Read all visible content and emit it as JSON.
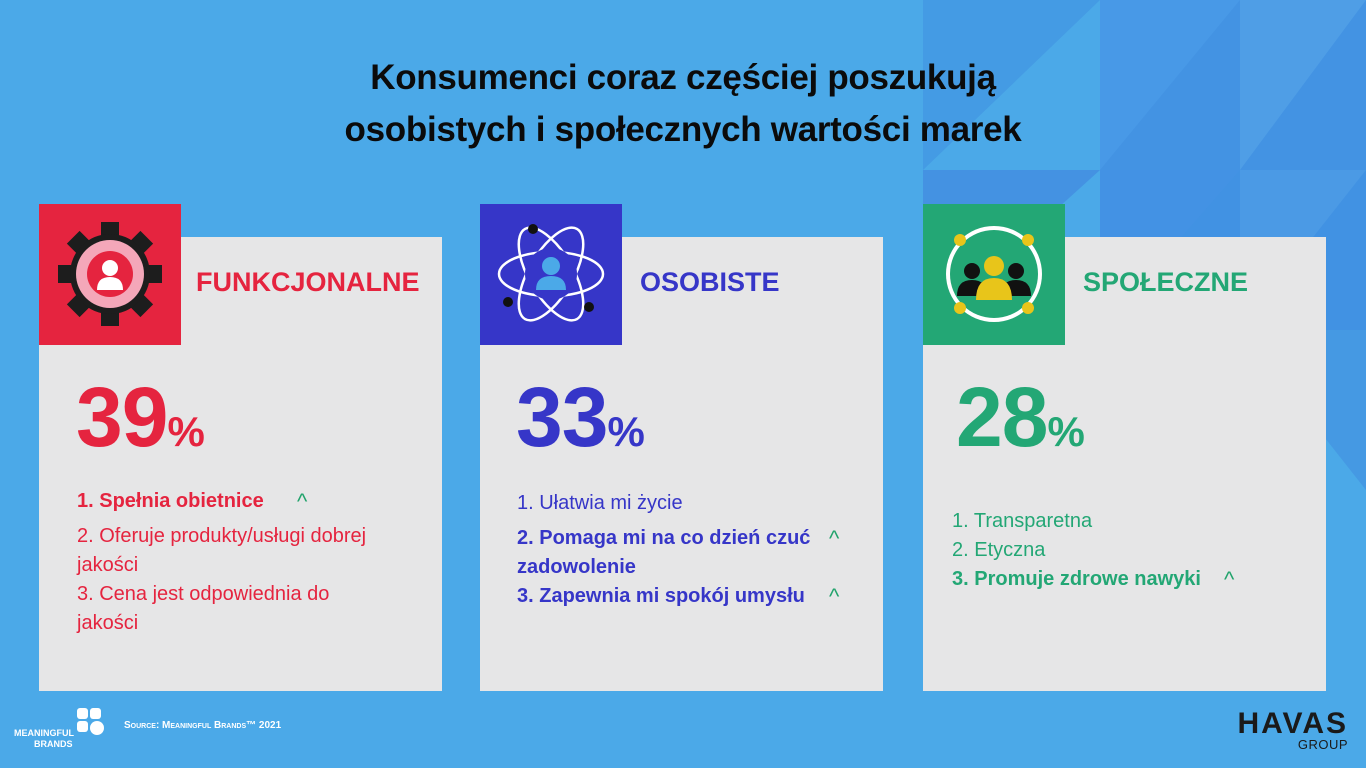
{
  "title": {
    "line1": "Konsumenci coraz częściej poszukują",
    "line2": "osobistych i społecznych wartości marek"
  },
  "colors": {
    "background": "#4ba9e8",
    "functional": "#e5243f",
    "personal": "#3636c8",
    "social": "#23a775",
    "card": "#e6e6e7",
    "arrow": "#22a36c"
  },
  "cards": [
    {
      "label": "FUNKCJONALNE",
      "value": "39",
      "unit": "%",
      "icon": "gear-person-icon",
      "items": [
        {
          "text": "1. Spełnia obietnice",
          "bold": true,
          "up": true
        },
        {
          "text": "2. Oferuje produkty/usługi dobrej jakości",
          "bold": false,
          "up": false
        },
        {
          "text": "3. Cena jest odpowiednia do jakości",
          "bold": false,
          "up": false
        }
      ]
    },
    {
      "label": "OSOBISTE",
      "value": "33",
      "unit": "%",
      "icon": "atom-person-icon",
      "items": [
        {
          "text": "1. Ułatwia mi życie",
          "bold": false,
          "up": false
        },
        {
          "text": "2. Pomaga mi na co dzień czuć zadowolenie",
          "bold": true,
          "up": true
        },
        {
          "text": "3. Zapewnia mi spokój umysłu",
          "bold": true,
          "up": true
        }
      ]
    },
    {
      "label": "SPOŁECZNE",
      "value": "28",
      "unit": "%",
      "icon": "people-group-icon",
      "items": [
        {
          "text": "1. Transparetna",
          "bold": false,
          "up": false
        },
        {
          "text": "2. Etyczna",
          "bold": false,
          "up": false
        },
        {
          "text": "3. Promuje zdrowe nawyki",
          "bold": true,
          "up": true
        }
      ]
    }
  ],
  "arrow_symbol": "^",
  "footer": {
    "source": "Source: Meaningful Brands™ 2021",
    "logo_line1": "MEANINGFUL",
    "logo_line2": "BRANDS",
    "havas": "HAVAS",
    "group": "GROUP"
  }
}
